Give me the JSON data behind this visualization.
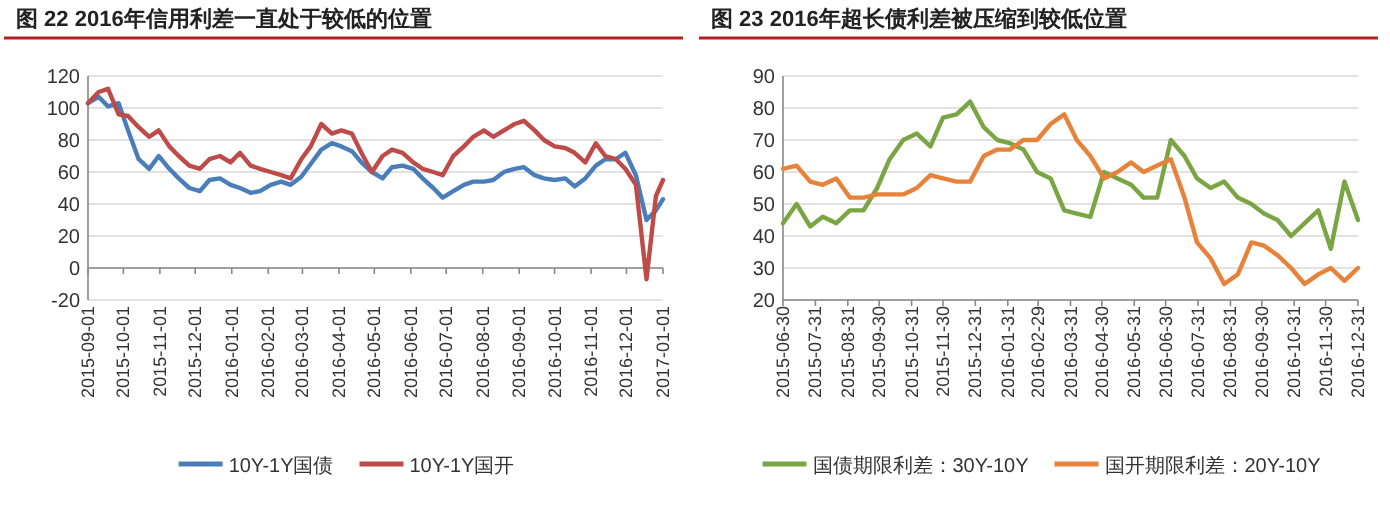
{
  "chart_data": [
    {
      "type": "line",
      "title": "图 22   2016年信用利差一直处于较低的位置",
      "legend": "bottom",
      "grid": "y",
      "xlim": [
        "2015-09-01",
        "2017-01-01"
      ],
      "ylim": [
        -20,
        120
      ],
      "yticks": [
        -20,
        0,
        20,
        40,
        60,
        80,
        100,
        120
      ],
      "xticks": [
        {
          "value": "2015-09-01",
          "label": "2015-09-01"
        },
        {
          "value": "2015-10-01",
          "label": "2015-10-01"
        },
        {
          "value": "2015-11-01",
          "label": "2015-11-01"
        },
        {
          "value": "2015-12-01",
          "label": "2015-12-01"
        },
        {
          "value": "2016-01-01",
          "label": "2016-01-01"
        },
        {
          "value": "2016-02-01",
          "label": "2016-02-01"
        },
        {
          "value": "2016-03-01",
          "label": "2016-03-01"
        },
        {
          "value": "2016-04-01",
          "label": "2016-04-01"
        },
        {
          "value": "2016-05-01",
          "label": "2016-05-01"
        },
        {
          "value": "2016-06-01",
          "label": "2016-06-01"
        },
        {
          "value": "2016-07-01",
          "label": "2016-07-01"
        },
        {
          "value": "2016-08-01",
          "label": "2016-08-01"
        },
        {
          "value": "2016-09-01",
          "label": "2016-09-01"
        },
        {
          "value": "2016-10-01",
          "label": "2016-10-01"
        },
        {
          "value": "2016-11-01",
          "label": "2016-11-01"
        },
        {
          "value": "2016-12-01",
          "label": "2016-12-01"
        },
        {
          "value": "2017-01-01",
          "label": "2017-01-01"
        }
      ],
      "x": [
        "2015-09-01",
        "2015-09-10",
        "2015-09-18",
        "2015-09-27",
        "2015-10-05",
        "2015-10-14",
        "2015-10-23",
        "2015-10-31",
        "2015-11-09",
        "2015-11-17",
        "2015-11-26",
        "2015-12-05",
        "2015-12-13",
        "2015-12-22",
        "2015-12-31",
        "2016-01-08",
        "2016-01-17",
        "2016-01-25",
        "2016-02-03",
        "2016-02-12",
        "2016-02-20",
        "2016-02-29",
        "2016-03-08",
        "2016-03-17",
        "2016-03-26",
        "2016-04-03",
        "2016-04-12",
        "2016-04-20",
        "2016-04-29",
        "2016-05-08",
        "2016-05-16",
        "2016-05-25",
        "2016-06-03",
        "2016-06-11",
        "2016-06-20",
        "2016-06-28",
        "2016-07-07",
        "2016-07-16",
        "2016-07-24",
        "2016-08-02",
        "2016-08-10",
        "2016-08-19",
        "2016-08-28",
        "2016-09-05",
        "2016-09-14",
        "2016-09-22",
        "2016-10-01",
        "2016-10-10",
        "2016-10-18",
        "2016-10-27",
        "2016-11-05",
        "2016-11-13",
        "2016-11-22",
        "2016-11-30",
        "2016-12-09",
        "2016-12-18",
        "2016-12-26",
        "2017-01-01"
      ],
      "series": [
        {
          "name": "10Y-1Y国债",
          "color": "#4a7ebb",
          "values": [
            103,
            107,
            101,
            103,
            86,
            68,
            62,
            70,
            62,
            56,
            50,
            48,
            55,
            56,
            52,
            50,
            47,
            48,
            52,
            54,
            52,
            57,
            65,
            74,
            78,
            76,
            73,
            66,
            60,
            56,
            63,
            64,
            62,
            56,
            50,
            44,
            48,
            52,
            54,
            54,
            55,
            60,
            62,
            63,
            58,
            56,
            55,
            56,
            51,
            56,
            64,
            68,
            68,
            72,
            58,
            30,
            36,
            43
          ]
        },
        {
          "name": "10Y-1Y国开",
          "color": "#be4b48",
          "values": [
            103,
            110,
            112,
            96,
            95,
            88,
            82,
            86,
            76,
            70,
            64,
            62,
            68,
            70,
            66,
            72,
            64,
            62,
            60,
            58,
            56,
            68,
            76,
            90,
            84,
            86,
            84,
            72,
            60,
            70,
            74,
            72,
            66,
            62,
            60,
            58,
            70,
            76,
            82,
            86,
            82,
            86,
            90,
            92,
            86,
            80,
            76,
            75,
            72,
            66,
            78,
            70,
            68,
            62,
            52,
            -7,
            45,
            55
          ]
        }
      ]
    },
    {
      "type": "line",
      "title": "图 23   2016年超长债利差被压缩到较低位置",
      "legend": "bottom",
      "grid": "y",
      "xlim": [
        "2015-06-30",
        "2016-12-31"
      ],
      "ylim": [
        20,
        90
      ],
      "yticks": [
        20,
        30,
        40,
        50,
        60,
        70,
        80,
        90
      ],
      "xticks": [
        {
          "value": "2015-06-30",
          "label": "2015-06-30"
        },
        {
          "value": "2015-07-31",
          "label": "2015-07-31"
        },
        {
          "value": "2015-08-31",
          "label": "2015-08-31"
        },
        {
          "value": "2015-09-30",
          "label": "2015-09-30"
        },
        {
          "value": "2015-10-31",
          "label": "2015-10-31"
        },
        {
          "value": "2015-11-30",
          "label": "2015-11-30"
        },
        {
          "value": "2015-12-31",
          "label": "2015-12-31"
        },
        {
          "value": "2016-01-31",
          "label": "2016-01-31"
        },
        {
          "value": "2016-02-29",
          "label": "2016-02-29"
        },
        {
          "value": "2016-03-31",
          "label": "2016-03-31"
        },
        {
          "value": "2016-04-30",
          "label": "2016-04-30"
        },
        {
          "value": "2016-05-31",
          "label": "2016-05-31"
        },
        {
          "value": "2016-06-30",
          "label": "2016-06-30"
        },
        {
          "value": "2016-07-31",
          "label": "2016-07-31"
        },
        {
          "value": "2016-08-31",
          "label": "2016-08-31"
        },
        {
          "value": "2016-09-30",
          "label": "2016-09-30"
        },
        {
          "value": "2016-10-31",
          "label": "2016-10-31"
        },
        {
          "value": "2016-11-30",
          "label": "2016-11-30"
        },
        {
          "value": "2016-12-31",
          "label": "2016-12-31"
        }
      ],
      "x": [
        "2015-06-30",
        "2015-07-13",
        "2015-07-26",
        "2015-08-07",
        "2015-08-20",
        "2015-09-02",
        "2015-09-15",
        "2015-09-28",
        "2015-10-10",
        "2015-10-23",
        "2015-11-05",
        "2015-11-18",
        "2015-11-30",
        "2015-12-13",
        "2015-12-26",
        "2016-01-08",
        "2016-01-21",
        "2016-02-02",
        "2016-02-15",
        "2016-02-28",
        "2016-03-12",
        "2016-03-25",
        "2016-04-06",
        "2016-04-19",
        "2016-05-02",
        "2016-05-15",
        "2016-05-28",
        "2016-06-09",
        "2016-06-22",
        "2016-07-05",
        "2016-07-18",
        "2016-07-30",
        "2016-08-12",
        "2016-08-25",
        "2016-09-07",
        "2016-09-20",
        "2016-10-02",
        "2016-10-15",
        "2016-10-28",
        "2016-11-10",
        "2016-11-23",
        "2016-12-05",
        "2016-12-18",
        "2016-12-31"
      ],
      "series": [
        {
          "name": "国债期限利差：30Y-10Y",
          "color": "#7aa543",
          "values": [
            44,
            50,
            43,
            46,
            44,
            48,
            48,
            55,
            64,
            70,
            72,
            68,
            77,
            78,
            82,
            74,
            70,
            69,
            67,
            60,
            58,
            48,
            47,
            46,
            60,
            58,
            56,
            52,
            52,
            70,
            65,
            58,
            55,
            57,
            52,
            50,
            47,
            45,
            40,
            44,
            48,
            36,
            57,
            45
          ]
        },
        {
          "name": "国开期限利差：20Y-10Y",
          "color": "#e8823a",
          "values": [
            61,
            62,
            57,
            56,
            58,
            52,
            52,
            53,
            53,
            53,
            55,
            59,
            58,
            57,
            57,
            65,
            67,
            67,
            70,
            70,
            75,
            78,
            70,
            65,
            58,
            60,
            63,
            60,
            62,
            64,
            52,
            38,
            33,
            25,
            28,
            38,
            37,
            34,
            30,
            25,
            28,
            30,
            26,
            30
          ]
        }
      ]
    }
  ]
}
